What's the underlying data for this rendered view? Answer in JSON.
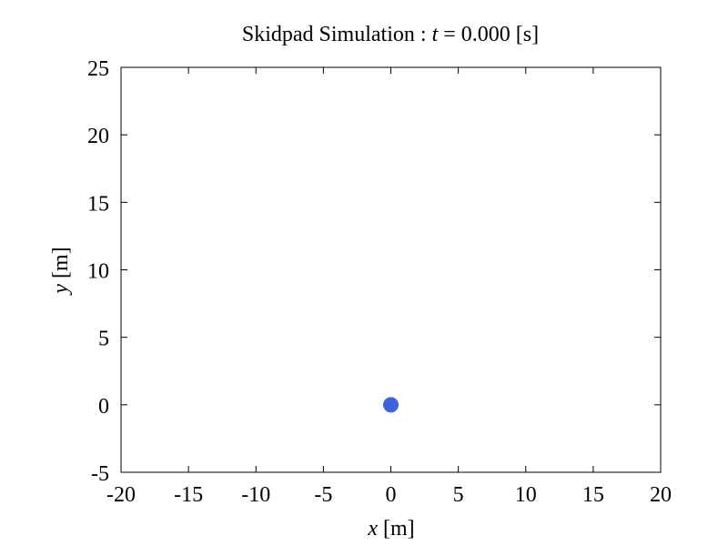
{
  "chart_data": {
    "type": "scatter",
    "title": {
      "prefix": "Skidpad Simulation : ",
      "variable": "t",
      "equals": " = ",
      "value": "0.000",
      "unit": " [s]"
    },
    "x_axis": {
      "variable": "x",
      "unit": " [m]",
      "range": [
        -20,
        20
      ],
      "ticks": [
        -20,
        -15,
        -10,
        -5,
        0,
        5,
        10,
        15,
        20
      ],
      "tick_labels": [
        "-20",
        "-15",
        "-10",
        "-5",
        "0",
        "5",
        "10",
        "15",
        "20"
      ]
    },
    "y_axis": {
      "variable": "y",
      "unit": " [m]",
      "range": [
        -5,
        25
      ],
      "ticks": [
        -5,
        0,
        5,
        10,
        15,
        20,
        25
      ],
      "tick_labels": [
        "-5",
        "0",
        "5",
        "10",
        "15",
        "20",
        "25"
      ]
    },
    "grid": false,
    "series": [
      {
        "color": "#3f63dc",
        "marker": "circle",
        "points": [
          {
            "x": 0,
            "y": 0
          }
        ]
      }
    ]
  }
}
